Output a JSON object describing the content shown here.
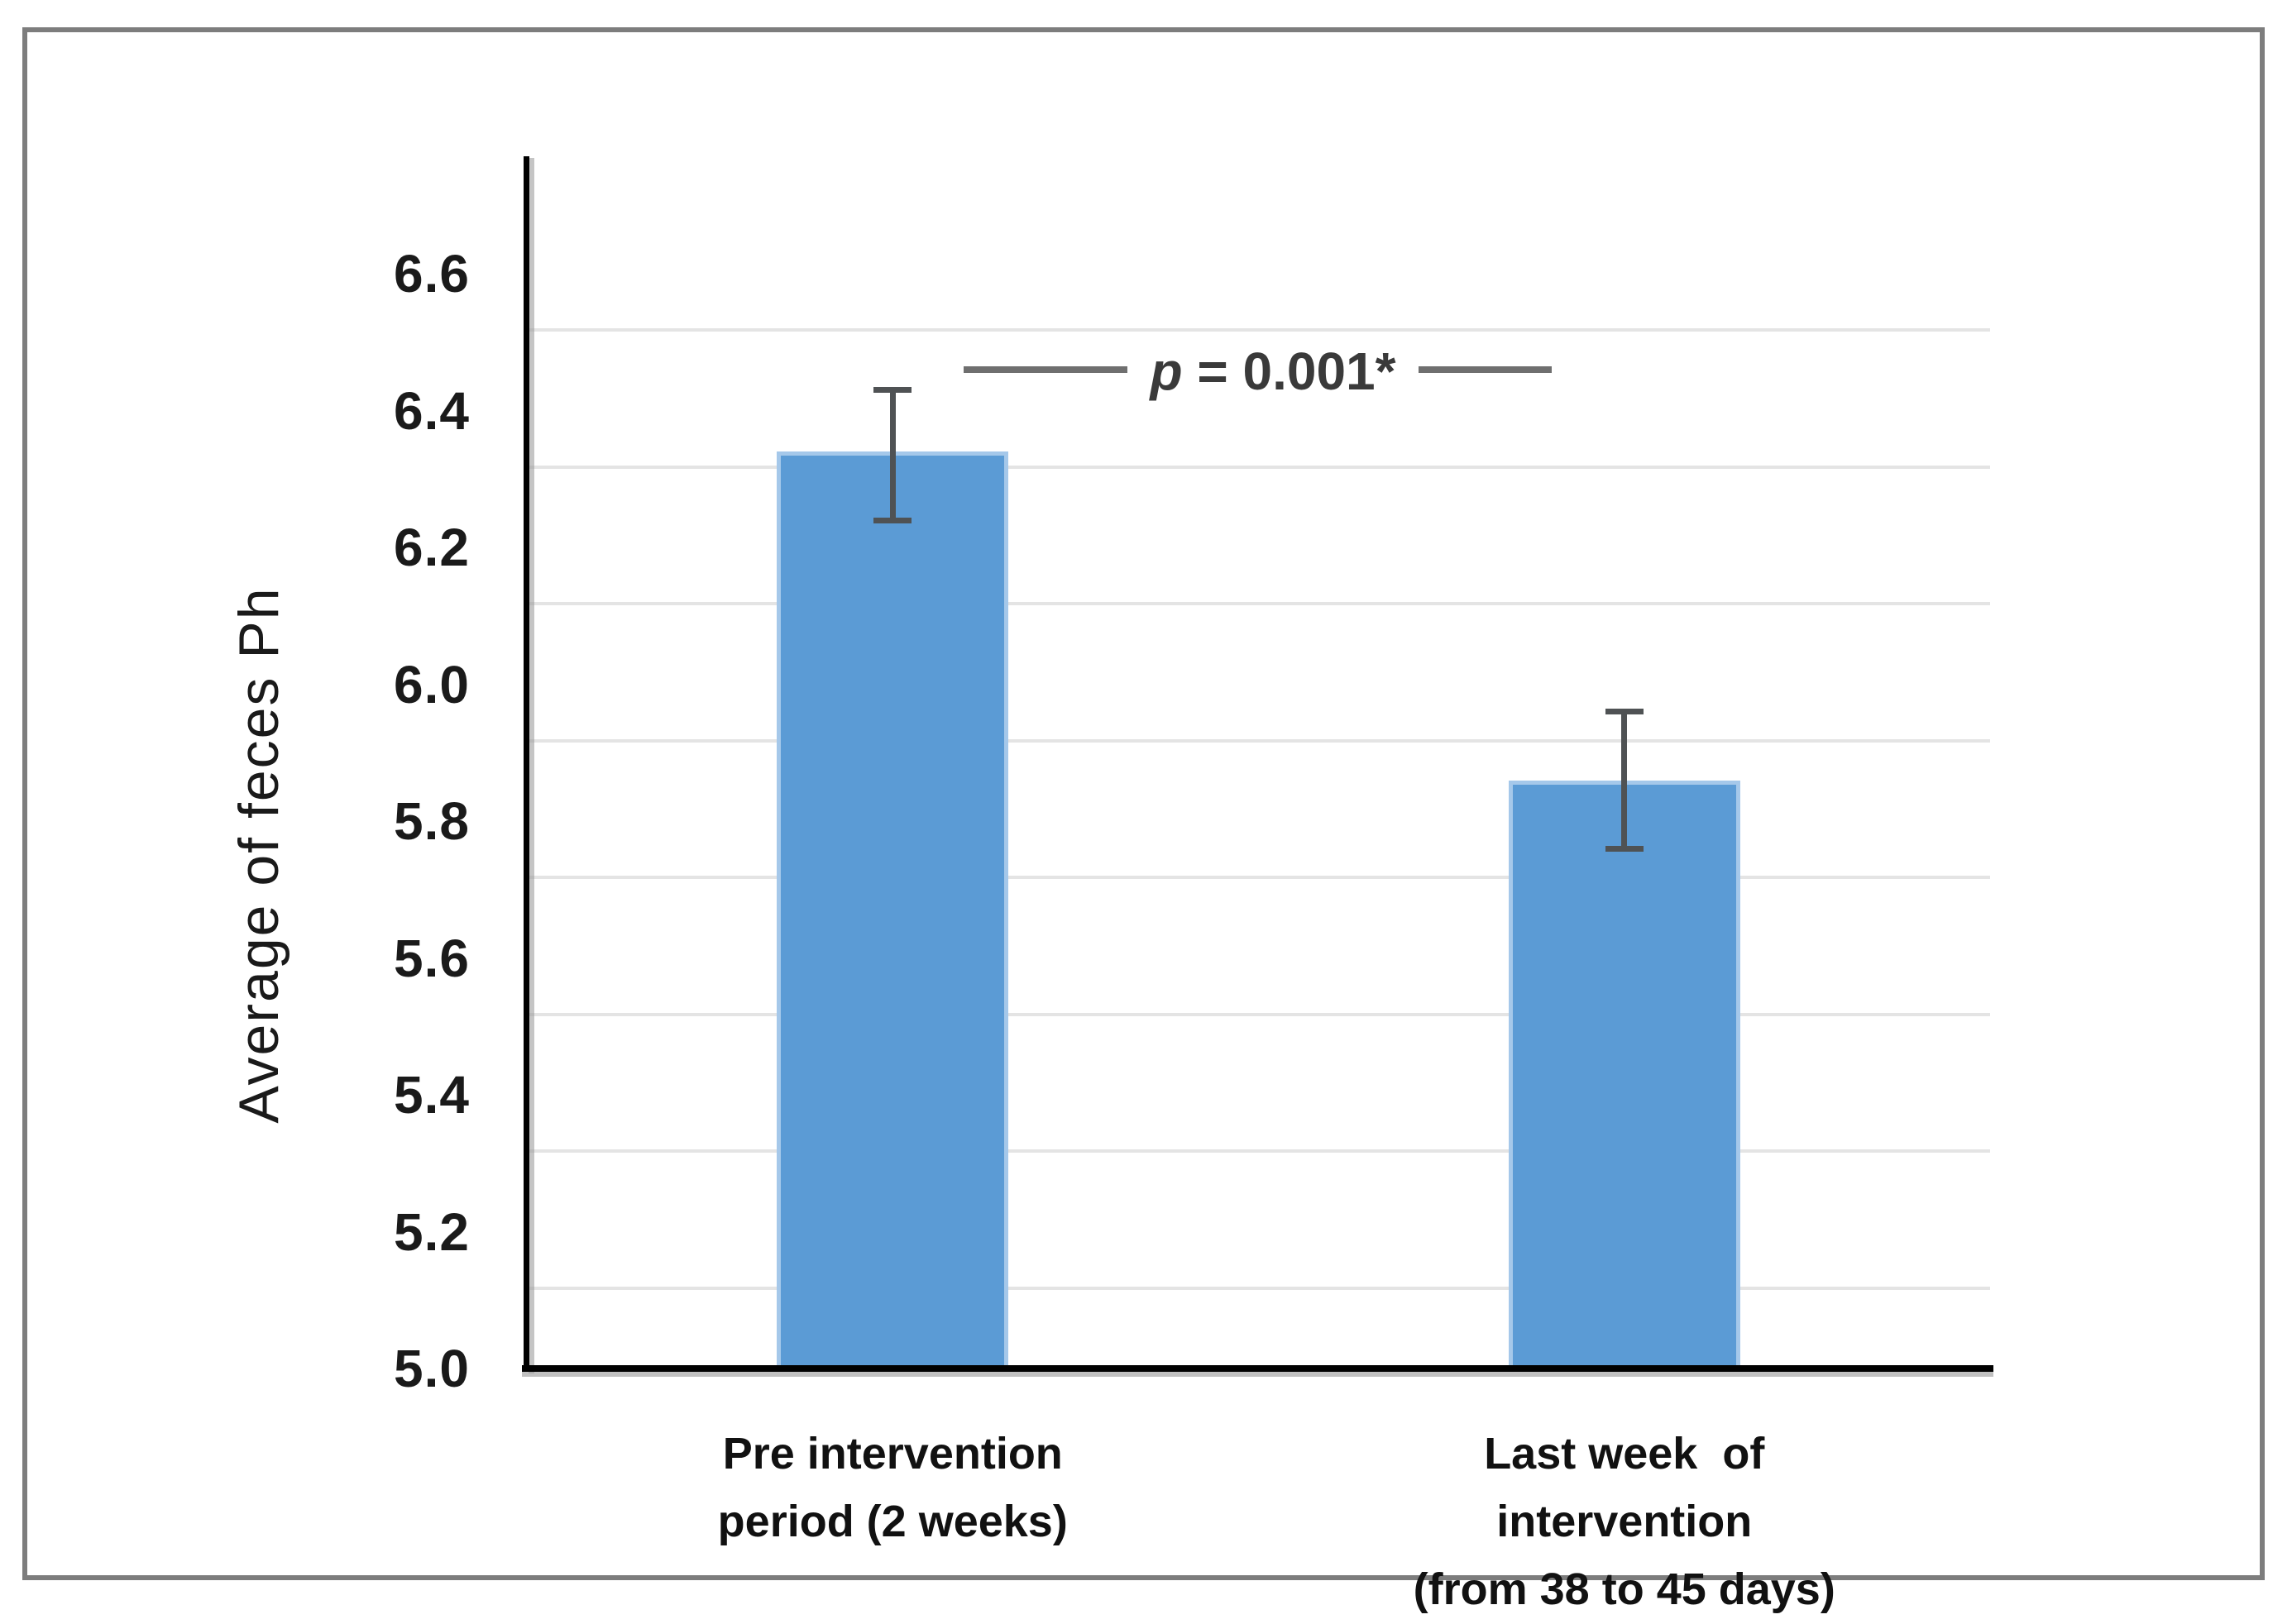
{
  "figure": {
    "background": "#ffffff",
    "border_color": "#7d7d7d"
  },
  "chart_data": {
    "type": "bar",
    "title": "",
    "xlabel": "",
    "ylabel": "Average of feces Ph",
    "categories": [
      {
        "label": "Pre intervention period (2 weeks)",
        "lines": [
          "Pre intervention",
          "period (2 weeks)"
        ]
      },
      {
        "label": "Last week  of intervention (from 38 to 45 days)",
        "lines": [
          "Last week  of",
          "intervention",
          "(from 38 to 45 days)"
        ]
      }
    ],
    "series": [
      {
        "name": "Average of feces Ph",
        "values": [
          6.34,
          5.86
        ]
      }
    ],
    "error_bars": [
      {
        "lower": 6.24,
        "upper": 6.43
      },
      {
        "lower": 5.76,
        "upper": 5.96
      }
    ],
    "yticks": [
      {
        "value": 6.6,
        "label": "6.6"
      },
      {
        "value": 6.4,
        "label": "6.4"
      },
      {
        "value": 6.2,
        "label": "6.2"
      },
      {
        "value": 6.0,
        "label": "6.0"
      },
      {
        "value": 5.8,
        "label": "5.8"
      },
      {
        "value": 5.6,
        "label": "5.6"
      },
      {
        "value": 5.4,
        "label": "5.4"
      },
      {
        "value": 5.2,
        "label": "5.2"
      },
      {
        "value": 5.0,
        "label": "5.0"
      }
    ],
    "ylim": [
      5.0,
      6.772
    ],
    "grid": true,
    "legend": "none",
    "gridline_values": [
      6.52,
      6.32,
      6.12,
      5.92,
      5.72,
      5.52,
      5.32,
      5.12
    ],
    "annotation": {
      "full": "p = 0.001*",
      "italic_part": "p",
      "rest_part": " = 0.001*",
      "bracket_y_value": 6.46
    },
    "colors": {
      "bar": "#5B9BD5",
      "bar_edge": "#A5C8EA",
      "error_bar": "#4F5254",
      "gridline": "#E4E4E4",
      "axis": "#000000",
      "bracket": "#6F6F6F",
      "text": "#1A1A1A",
      "annotation_text": "#3A3A3A"
    }
  }
}
